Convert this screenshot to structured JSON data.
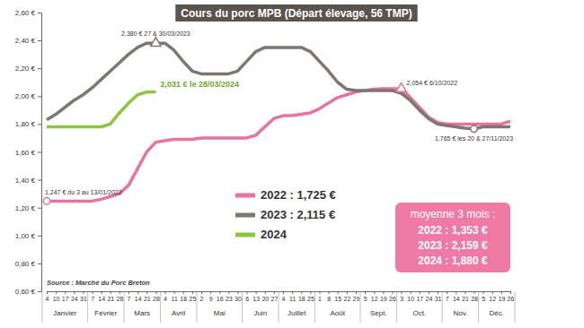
{
  "chart_data": {
    "type": "line",
    "title": "Cours du porc MPB (Départ élevage, 56 TMP)",
    "source": "Source : Marché du Porc Breton",
    "categories": [
      "4",
      "10",
      "17",
      "24",
      "31",
      "7",
      "14",
      "21",
      "28",
      "7",
      "14",
      "21",
      "28",
      "4",
      "11",
      "18",
      "25",
      "2",
      "9",
      "16",
      "23",
      "30",
      "6",
      "13",
      "20",
      "27",
      "4",
      "11",
      "18",
      "25",
      "1",
      "8",
      "15",
      "22",
      "29",
      "5",
      "12",
      "19",
      "26",
      "3",
      "10",
      "17",
      "24",
      "31",
      "7",
      "14",
      "21",
      "28",
      "5",
      "12",
      "19",
      "26"
    ],
    "month_groups": [
      {
        "label": "Janvier",
        "count": 5
      },
      {
        "label": "Février",
        "count": 4
      },
      {
        "label": "Mars",
        "count": 4
      },
      {
        "label": "Avril",
        "count": 4
      },
      {
        "label": "Mai",
        "count": 5
      },
      {
        "label": "Juin",
        "count": 4
      },
      {
        "label": "Juillet",
        "count": 4
      },
      {
        "label": "Août",
        "count": 5
      },
      {
        "label": "Sept.",
        "count": 4
      },
      {
        "label": "Oct.",
        "count": 5
      },
      {
        "label": "Nov.",
        "count": 4
      },
      {
        "label": "Déc.",
        "count": 4
      }
    ],
    "series": [
      {
        "name": "2022 : 1,725 €",
        "color": "#e8739e",
        "line_style": "solid",
        "values": [
          1.247,
          1.247,
          1.247,
          1.247,
          1.247,
          1.247,
          1.26,
          1.28,
          1.3,
          1.36,
          1.48,
          1.6,
          1.67,
          1.68,
          1.69,
          1.69,
          1.69,
          1.7,
          1.7,
          1.7,
          1.7,
          1.7,
          1.7,
          1.72,
          1.78,
          1.84,
          1.86,
          1.86,
          1.87,
          1.88,
          1.91,
          1.95,
          1.99,
          2.01,
          2.03,
          2.04,
          2.05,
          2.054,
          2.054,
          2.054,
          1.99,
          1.92,
          1.85,
          1.81,
          1.8,
          1.8,
          1.8,
          1.8,
          1.8,
          1.8,
          1.8,
          1.82
        ]
      },
      {
        "name": "2023 : 2,115 €",
        "color": "#7d7770",
        "line_style": "solid",
        "values": [
          1.83,
          1.87,
          1.92,
          1.97,
          2.01,
          2.06,
          2.12,
          2.18,
          2.24,
          2.3,
          2.35,
          2.38,
          2.38,
          2.38,
          2.33,
          2.25,
          2.18,
          2.16,
          2.16,
          2.16,
          2.16,
          2.18,
          2.25,
          2.32,
          2.35,
          2.35,
          2.35,
          2.35,
          2.35,
          2.32,
          2.25,
          2.18,
          2.1,
          2.05,
          2.04,
          2.04,
          2.04,
          2.04,
          2.04,
          2.02,
          1.97,
          1.9,
          1.84,
          1.8,
          1.79,
          1.78,
          1.77,
          1.765,
          1.78,
          1.78,
          1.78,
          1.78
        ]
      },
      {
        "name": "2024",
        "color": "#8cc63f",
        "line_style": "solid",
        "values": [
          1.78,
          1.78,
          1.78,
          1.78,
          1.78,
          1.78,
          1.78,
          1.8,
          1.88,
          1.95,
          2.01,
          2.03,
          2.031,
          null,
          null,
          null,
          null,
          null,
          null,
          null,
          null,
          null,
          null,
          null,
          null,
          null,
          null,
          null,
          null,
          null,
          null,
          null,
          null,
          null,
          null,
          null,
          null,
          null,
          null,
          null,
          null,
          null,
          null,
          null,
          null,
          null,
          null,
          null,
          null,
          null,
          null,
          null
        ]
      }
    ],
    "annotations": [
      {
        "text": "1,247 € du 3 au 13/01/2022",
        "x": 0,
        "y": 1.247,
        "marker": "circle",
        "color": "#e8739e"
      },
      {
        "text": "2,380 € 27 & 30/03/2023",
        "x": 12,
        "y": 2.38,
        "marker": "triangle",
        "color": "#7d7770"
      },
      {
        "text": "2,031 € le 28/03/2024",
        "x": 12,
        "y": 2.031,
        "color": "#6fa82a"
      },
      {
        "text": "2,054 € 6/10/2022",
        "x": 39,
        "y": 2.054,
        "marker": "triangle",
        "color": "#e8739e"
      },
      {
        "text": "1,765 € les 20 & 27/11/2023",
        "x": 47,
        "y": 1.765,
        "marker": "circle",
        "color": "#7d7770"
      }
    ],
    "average_box": {
      "title": "moyenne 3 mois :",
      "lines": [
        "2022 : 1,353 €",
        "2023 : 2,159 €",
        "2024 : 1,880 €"
      ],
      "color": "#f07aa6"
    },
    "ylim": [
      0.6,
      2.6
    ],
    "yticks": [
      {
        "value": 0.6,
        "label": "0,60 €"
      },
      {
        "value": 0.8,
        "label": "0,80 €"
      },
      {
        "value": 1.0,
        "label": "1,00 €"
      },
      {
        "value": 1.2,
        "label": "1,20 €"
      },
      {
        "value": 1.4,
        "label": "1,40 €"
      },
      {
        "value": 1.6,
        "label": "1,60 €"
      },
      {
        "value": 1.8,
        "label": "1,80 €"
      },
      {
        "value": 2.0,
        "label": "2,00 €"
      },
      {
        "value": 2.2,
        "label": "2,20 €"
      },
      {
        "value": 2.4,
        "label": "2,40 €"
      },
      {
        "value": 2.6,
        "label": "2,60 €"
      }
    ],
    "grid": false,
    "legend": "center"
  }
}
